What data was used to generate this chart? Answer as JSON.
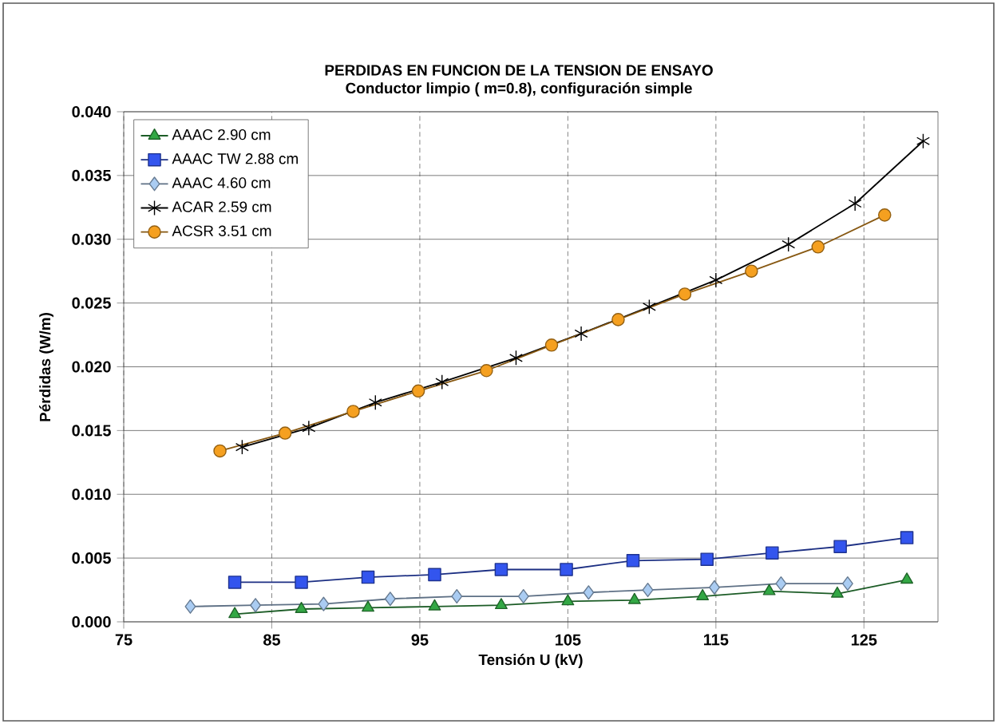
{
  "chart_data": {
    "type": "line",
    "title": "PERDIDAS EN FUNCION DE LA TENSION DE ENSAYO",
    "subtitle": "Conductor limpio ( m=0.8), configuración simple",
    "xlabel": "Tensión U (kV)",
    "ylabel": "Pérdidas  (W/m)",
    "xlim": [
      75,
      130
    ],
    "xticks": [
      75,
      85,
      95,
      105,
      115,
      125
    ],
    "ylim": [
      0,
      0.04
    ],
    "yticks": [
      {
        "value": 0,
        "label": "0.000"
      },
      {
        "value": 0.005,
        "label": "0.005"
      },
      {
        "value": 0.01,
        "label": "0.010"
      },
      {
        "value": 0.015,
        "label": "0.015"
      },
      {
        "value": 0.02,
        "label": "0.020"
      },
      {
        "value": 0.025,
        "label": "0.025"
      },
      {
        "value": 0.03,
        "label": "0.030"
      },
      {
        "value": 0.035,
        "label": "0.035"
      },
      {
        "value": 0.04,
        "label": "0.040"
      }
    ],
    "grid": true,
    "legend": "top left",
    "series": [
      {
        "name": "AAAC 2.90 cm",
        "color": "#33a845",
        "marker": "triangle",
        "x": [
          82.5,
          87.0,
          91.5,
          96.0,
          100.5,
          105.0,
          109.5,
          114.1,
          118.6,
          123.2,
          127.9
        ],
        "values": [
          0.0006,
          0.001,
          0.0011,
          0.0012,
          0.0013,
          0.0016,
          0.0017,
          0.002,
          0.0024,
          0.0022,
          0.0033
        ]
      },
      {
        "name": "AAAC TW 2.88 cm",
        "color": "#3355ee",
        "marker": "square",
        "x": [
          82.5,
          87.0,
          91.5,
          96.0,
          100.5,
          104.9,
          109.4,
          114.4,
          118.8,
          123.4,
          127.9
        ],
        "values": [
          0.0031,
          0.0031,
          0.0035,
          0.0037,
          0.0041,
          0.0041,
          0.0048,
          0.0049,
          0.0054,
          0.0059,
          0.0066
        ]
      },
      {
        "name": "AAAC 4.60 cm",
        "color": "#aaccf2",
        "marker": "diamond",
        "x": [
          79.5,
          83.9,
          88.5,
          93.0,
          97.5,
          102.0,
          106.4,
          110.4,
          114.9,
          119.4,
          123.9
        ],
        "values": [
          0.0012,
          0.0013,
          0.0014,
          0.0018,
          0.002,
          0.002,
          0.0023,
          0.0025,
          0.0027,
          0.003,
          0.003
        ]
      },
      {
        "name": "ACAR 2.59 cm",
        "color": "#000000",
        "marker": "cross",
        "x": [
          83.0,
          87.5,
          92.0,
          96.5,
          101.5,
          105.9,
          110.5,
          115.0,
          119.9,
          124.4,
          129.0
        ],
        "values": [
          0.0137,
          0.0152,
          0.0172,
          0.0188,
          0.0207,
          0.0226,
          0.0247,
          0.0268,
          0.0296,
          0.0328,
          0.0377
        ]
      },
      {
        "name": "ACSR 3.51 cm",
        "color": "#f5a020",
        "marker": "circle",
        "x": [
          81.5,
          85.9,
          90.5,
          94.9,
          99.5,
          103.9,
          108.4,
          112.9,
          117.4,
          121.9,
          126.4
        ],
        "values": [
          0.0134,
          0.0148,
          0.0165,
          0.0181,
          0.0197,
          0.0217,
          0.0237,
          0.0257,
          0.0275,
          0.0294,
          0.0319
        ]
      }
    ]
  }
}
